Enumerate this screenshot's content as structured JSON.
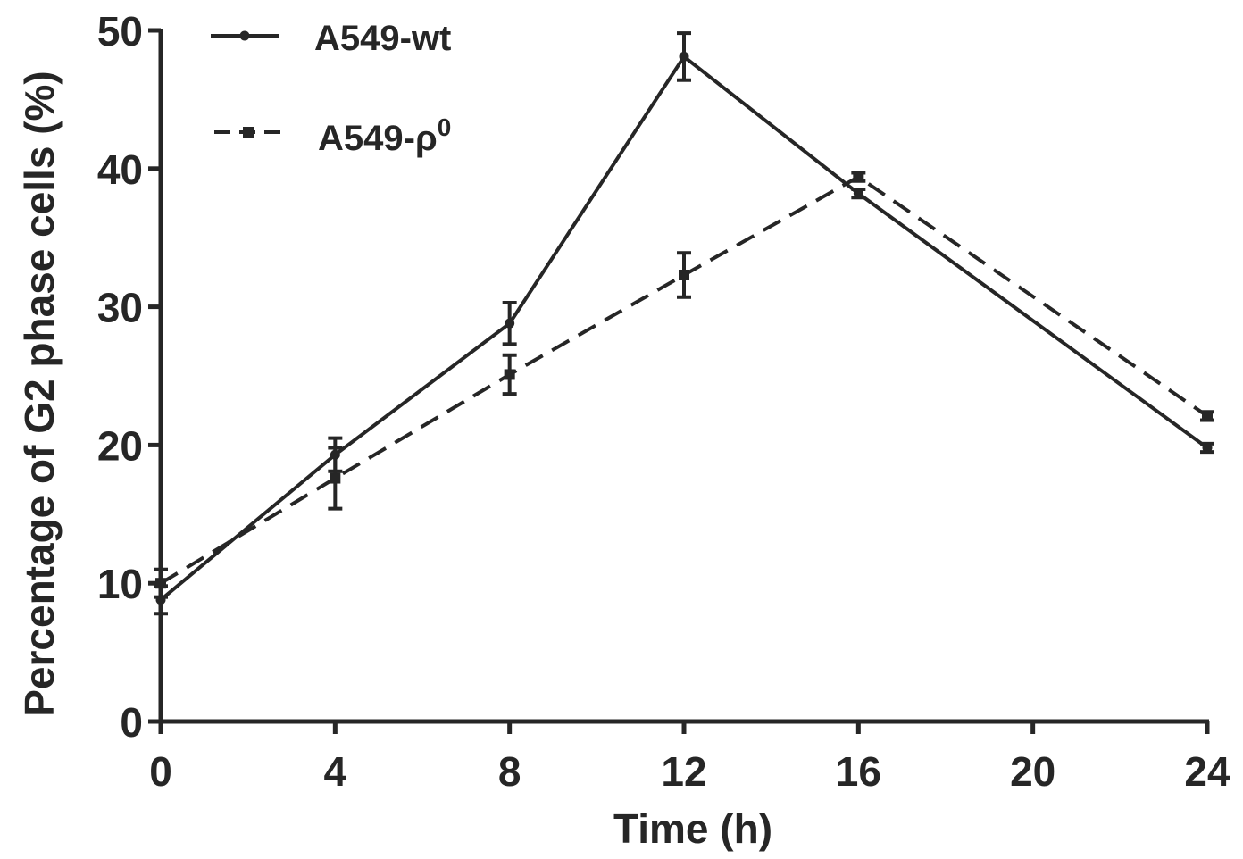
{
  "chart_data": {
    "type": "line",
    "title": "",
    "xlabel": "Time (h)",
    "ylabel": "Percentage of G2 phase cells (%)",
    "xlim": [
      0,
      24
    ],
    "ylim": [
      0,
      50
    ],
    "xticks": [
      0,
      4,
      8,
      12,
      16,
      20,
      24
    ],
    "yticks": [
      0,
      10,
      20,
      30,
      40,
      50
    ],
    "xtick_labels": [
      "0",
      "4",
      "8",
      "12",
      "16",
      "20",
      "24"
    ],
    "ytick_labels": [
      "0",
      "10",
      "20",
      "30",
      "40",
      "50"
    ],
    "grid": false,
    "legend_position": "top-left",
    "series": [
      {
        "name": "A549-wt",
        "line_style": "solid",
        "marker": "circle",
        "color": "#262626",
        "x": [
          0,
          4,
          8,
          12,
          16,
          24
        ],
        "y": [
          8.8,
          19.3,
          28.8,
          48.1,
          38.2,
          19.8
        ],
        "error": [
          1.0,
          1.2,
          1.5,
          1.7,
          0.3,
          0.3
        ]
      },
      {
        "name": "A549-ρ",
        "name_superscript": "0",
        "line_style": "dashed",
        "marker": "square",
        "color": "#262626",
        "x": [
          0,
          4,
          8,
          12,
          16,
          24
        ],
        "y": [
          10.0,
          17.6,
          25.1,
          32.3,
          39.4,
          22.1
        ],
        "error": [
          1.0,
          2.2,
          1.4,
          1.6,
          0.3,
          0.3
        ]
      }
    ]
  }
}
